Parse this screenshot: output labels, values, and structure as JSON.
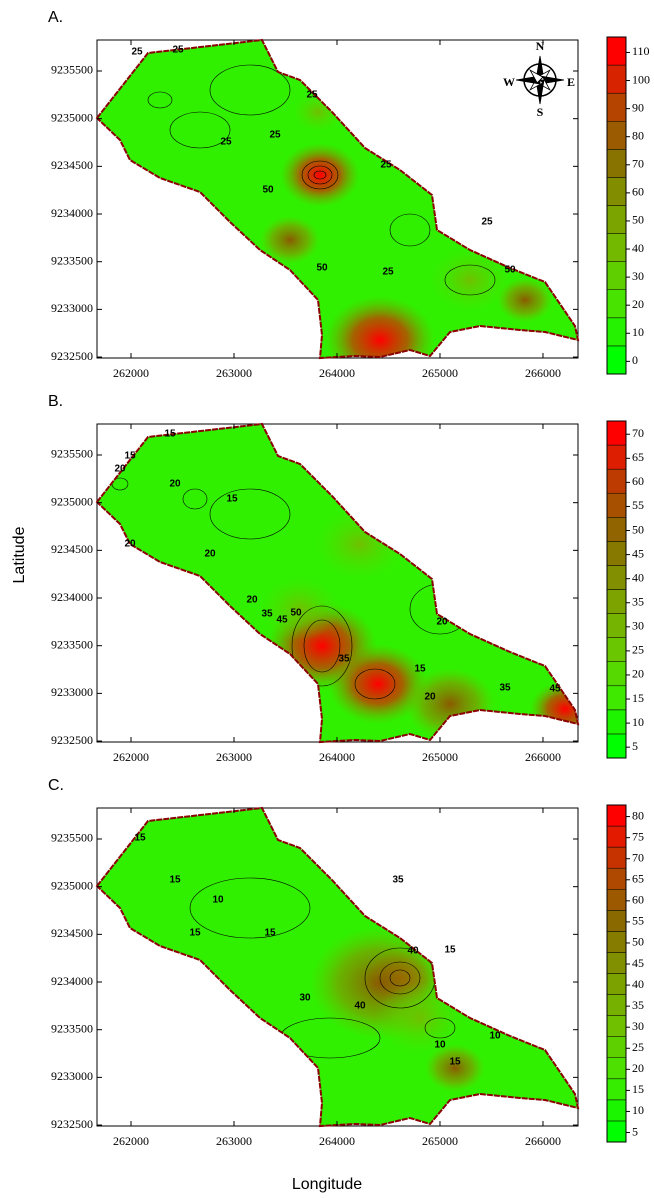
{
  "x_axis_label": "Longitude",
  "y_axis_label": "Latitude",
  "xlim": [
    261670,
    266340
  ],
  "ylim": [
    9232490,
    9235825
  ],
  "xticks": [
    262000,
    263000,
    264000,
    265000,
    266000
  ],
  "yticks": [
    9232500,
    9233000,
    9233500,
    9234000,
    9234500,
    9235000,
    9235500
  ],
  "colormap": [
    "#00ff00",
    "#44e800",
    "#70c000",
    "#7f9a00",
    "#8a6a00",
    "#b84000",
    "#ff0000"
  ],
  "compass": {
    "n": "N",
    "e": "E",
    "s": "S",
    "w": "W"
  },
  "panels": [
    {
      "label": "A.",
      "colorbar_ticks": [
        0,
        10,
        20,
        30,
        40,
        50,
        60,
        70,
        80,
        90,
        100,
        110
      ],
      "contour_labels": [
        "25",
        "25",
        "25",
        "25",
        "25",
        "50",
        "25",
        "25",
        "50",
        "25",
        "50"
      ]
    },
    {
      "label": "B.",
      "colorbar_ticks": [
        5,
        10,
        15,
        20,
        25,
        30,
        35,
        40,
        45,
        50,
        55,
        60,
        65,
        70
      ],
      "contour_labels": [
        "15",
        "15",
        "20",
        "20",
        "20",
        "15",
        "20",
        "20",
        "35",
        "45",
        "50",
        "35",
        "20",
        "15",
        "20",
        "35",
        "45"
      ]
    },
    {
      "label": "C.",
      "colorbar_ticks": [
        5,
        10,
        15,
        20,
        25,
        30,
        35,
        40,
        45,
        50,
        55,
        60,
        65,
        70,
        75,
        80
      ],
      "contour_labels": [
        "15",
        "15",
        "10",
        "15",
        "15",
        "35",
        "40",
        "15",
        "30",
        "40",
        "10",
        "15",
        "10"
      ]
    }
  ]
}
